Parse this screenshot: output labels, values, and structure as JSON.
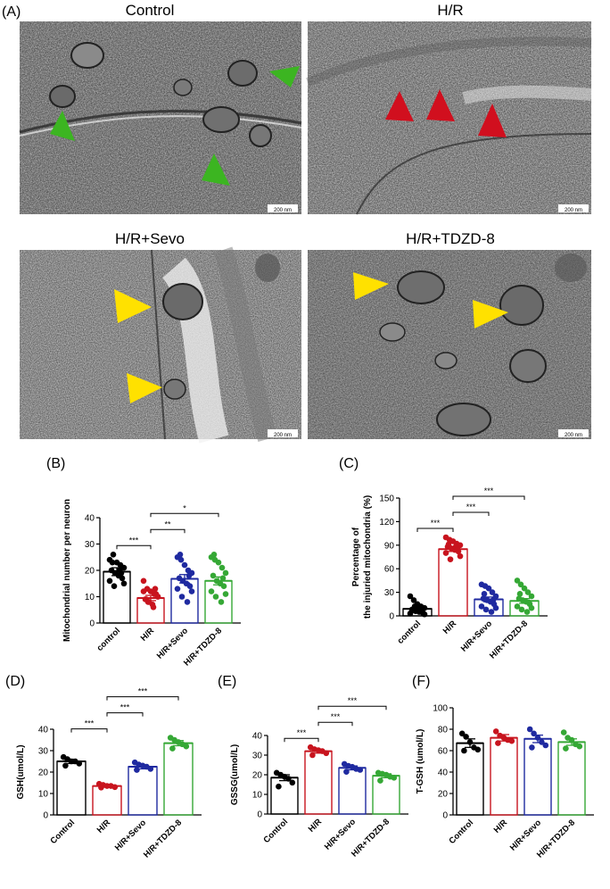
{
  "panel_labels": {
    "A": "(A)",
    "B": "(B)",
    "C": "(C)",
    "D": "(D)",
    "E": "(E)",
    "F": "(F)"
  },
  "micrographs": [
    {
      "title": "Control",
      "scalebar": "200 nm",
      "arrow_color": "#3cb521"
    },
    {
      "title": "H/R",
      "scalebar": "200 nm",
      "arrow_color": "#d10f1e"
    },
    {
      "title": "H/R+Sevo",
      "scalebar": "200 nm",
      "arrow_color": "#ffe100"
    },
    {
      "title": "H/R+TDZD-8",
      "scalebar": "200 nm",
      "arrow_color": "#ffe100"
    }
  ],
  "colors": {
    "control": "#000000",
    "hr": "#c8141e",
    "sevo": "#1f2aa0",
    "tdzd": "#35a835"
  },
  "chart_data": [
    {
      "id": "B",
      "type": "bar",
      "categories": [
        "control",
        "H/R",
        "H/R+Sevo",
        "H/R+TDZD-8"
      ],
      "values": [
        19.5,
        9.5,
        16.8,
        16.0
      ],
      "errors": [
        1.5,
        1.0,
        1.6,
        1.5
      ],
      "points": [
        [
          24,
          26,
          23,
          22,
          21,
          20,
          19,
          18,
          17,
          16,
          15,
          14,
          20,
          23,
          19
        ],
        [
          16,
          13,
          12,
          11,
          10,
          9,
          8,
          7,
          11,
          12,
          10,
          8,
          6,
          9,
          13
        ],
        [
          25,
          24,
          22,
          20,
          19,
          17,
          16,
          15,
          14,
          13,
          12,
          10,
          8,
          26,
          18
        ],
        [
          25,
          24,
          23,
          21,
          19,
          18,
          16,
          15,
          14,
          12,
          11,
          10,
          8,
          26,
          17
        ]
      ],
      "ylabel": "Mitochondrial number per neuron",
      "ylim": [
        0,
        40
      ],
      "yticks": [
        0,
        10,
        20,
        30,
        40
      ],
      "significance": [
        {
          "pair": [
            0,
            1
          ],
          "label": "***"
        },
        {
          "pair": [
            1,
            2
          ],
          "label": "**"
        },
        {
          "pair": [
            1,
            3
          ],
          "label": "*"
        }
      ]
    },
    {
      "id": "C",
      "type": "bar",
      "categories": [
        "control",
        "H/R",
        "H/R+Sevo",
        "H/R+TDZD-8"
      ],
      "values": [
        9,
        85,
        21,
        19
      ],
      "errors": [
        2.5,
        3,
        3,
        3
      ],
      "points": [
        [
          25,
          20,
          15,
          12,
          10,
          8,
          6,
          5,
          4,
          3,
          2,
          12,
          9,
          7,
          6
        ],
        [
          100,
          97,
          95,
          92,
          90,
          88,
          86,
          84,
          82,
          80,
          76,
          72,
          88,
          91,
          85
        ],
        [
          40,
          38,
          35,
          30,
          25,
          22,
          20,
          18,
          15,
          12,
          10,
          8,
          5,
          28,
          20
        ],
        [
          45,
          40,
          35,
          30,
          25,
          22,
          20,
          18,
          15,
          12,
          10,
          8,
          5,
          28,
          17
        ]
      ],
      "ylabel": "Percentage of\nthe injuried mitochondria (%)",
      "ylim": [
        0,
        150
      ],
      "yticks": [
        0,
        30,
        60,
        90,
        120,
        150
      ],
      "significance": [
        {
          "pair": [
            0,
            1
          ],
          "label": "***"
        },
        {
          "pair": [
            1,
            2
          ],
          "label": "***"
        },
        {
          "pair": [
            1,
            3
          ],
          "label": "***"
        }
      ]
    },
    {
      "id": "D",
      "type": "bar",
      "categories": [
        "Control",
        "H/R",
        "H/R+Sevo",
        "H/R+TDZD-8"
      ],
      "values": [
        25,
        13.5,
        22.5,
        33.5
      ],
      "errors": [
        1,
        0.6,
        1,
        1.2
      ],
      "points": [
        [
          27,
          26,
          25,
          25,
          24,
          23
        ],
        [
          14.5,
          14,
          13.5,
          13.5,
          13,
          12.8
        ],
        [
          24.5,
          23.5,
          23,
          22.5,
          21.5,
          21
        ],
        [
          36,
          35,
          34,
          33,
          32,
          31
        ]
      ],
      "ylabel": "GSH(umol/L)",
      "ylim": [
        0,
        40
      ],
      "yticks": [
        0,
        10,
        20,
        30,
        40
      ],
      "significance": [
        {
          "pair": [
            0,
            1
          ],
          "label": "***"
        },
        {
          "pair": [
            1,
            2
          ],
          "label": "***"
        },
        {
          "pair": [
            1,
            3
          ],
          "label": "***"
        }
      ]
    },
    {
      "id": "E",
      "type": "bar",
      "categories": [
        "Control",
        "H/R",
        "H/R+Sevo",
        "H/R+TDZD-8"
      ],
      "values": [
        18.5,
        32,
        23.5,
        19.5
      ],
      "errors": [
        1.5,
        1,
        1,
        1
      ],
      "points": [
        [
          21,
          20,
          19,
          18,
          16,
          14
        ],
        [
          34,
          33,
          32.5,
          32,
          31,
          30
        ],
        [
          25.5,
          24.5,
          24,
          23,
          22.5,
          21.5
        ],
        [
          21,
          20.5,
          20,
          19,
          18.5,
          17
        ]
      ],
      "ylabel": "GSSG(umol/L)",
      "ylim": [
        0,
        40
      ],
      "yticks": [
        0,
        10,
        20,
        30,
        40
      ],
      "significance": [
        {
          "pair": [
            0,
            1
          ],
          "label": "***"
        },
        {
          "pair": [
            1,
            2
          ],
          "label": "***"
        },
        {
          "pair": [
            1,
            3
          ],
          "label": "***"
        }
      ]
    },
    {
      "id": "F",
      "type": "bar",
      "categories": [
        "Control",
        "H/R",
        "H/R+Sevo",
        "H/R+TDZD-8"
      ],
      "values": [
        67,
        72,
        71,
        68
      ],
      "errors": [
        4,
        3,
        3.5,
        3
      ],
      "points": [
        [
          76,
          73,
          68,
          63,
          61,
          60
        ],
        [
          78,
          74,
          72,
          70,
          69,
          67
        ],
        [
          80,
          76,
          72,
          68,
          65,
          63
        ],
        [
          77,
          72,
          70,
          66,
          64,
          62
        ]
      ],
      "ylabel": "T-GSH (umol/L)",
      "ylim": [
        0,
        100
      ],
      "yticks": [
        0,
        20,
        40,
        60,
        80,
        100
      ],
      "significance": []
    }
  ]
}
